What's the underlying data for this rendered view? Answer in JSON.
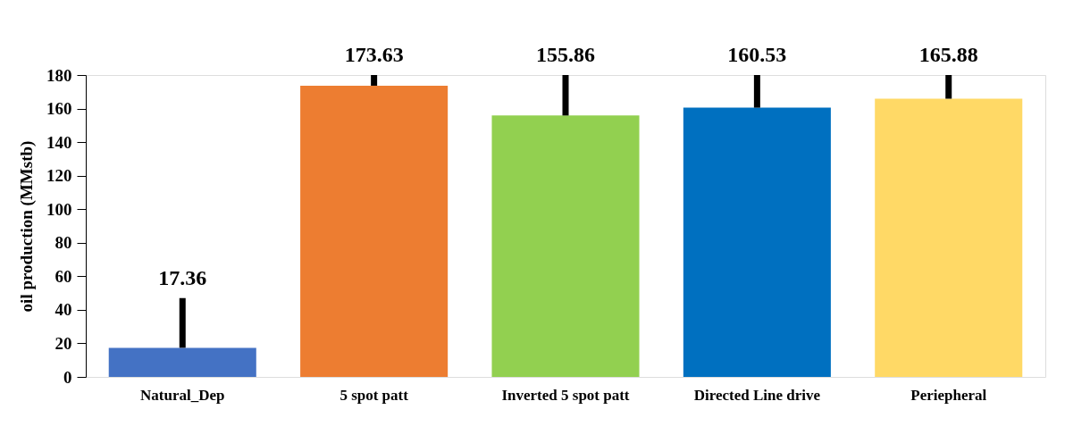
{
  "chart_data": {
    "type": "bar",
    "ylabel": "oil production (MMstb)",
    "categories": [
      "Natural_Dep",
      "5 spot patt",
      "Inverted 5 spot patt",
      "Directed Line drive",
      "Periepheral"
    ],
    "values": [
      17.36,
      173.63,
      155.86,
      160.53,
      165.88
    ],
    "colors": [
      "#4472c4",
      "#ed7d31",
      "#92d050",
      "#0070c0",
      "#ffd966"
    ],
    "errors": [
      [
        17.36,
        47
      ],
      [
        173.63,
        180
      ],
      [
        155.86,
        180
      ],
      [
        160.53,
        180
      ],
      [
        165.88,
        180
      ]
    ],
    "data_labels": true,
    "ylim": [
      0,
      180
    ],
    "yticks": [
      0,
      20,
      40,
      60,
      80,
      100,
      120,
      140,
      160,
      180
    ],
    "grid": false
  }
}
